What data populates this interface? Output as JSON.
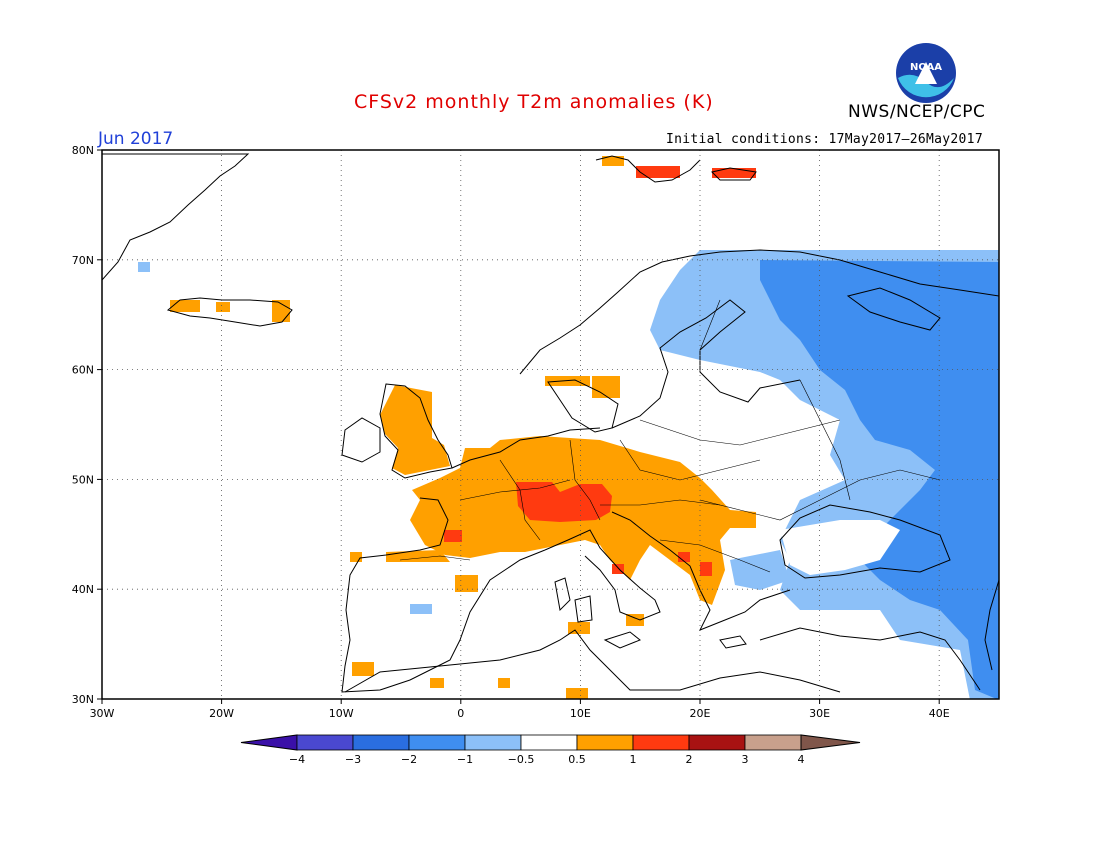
{
  "header": {
    "title": "CFSv2 monthly T2m anomalies (K)",
    "agency": "NWS/NCEP/CPC",
    "logo_text": "NOAA",
    "month": "Jun 2017",
    "initial_conditions": "Initial conditions: 17May2017–26May2017"
  },
  "map": {
    "lon_range": [
      -30,
      45
    ],
    "lat_range": [
      30,
      80
    ],
    "lat_ticks": [
      "80N",
      "70N",
      "60N",
      "50N",
      "40N",
      "30N"
    ],
    "lon_ticks": [
      "30W",
      "20W",
      "10W",
      "0",
      "10E",
      "20E",
      "30E",
      "40E"
    ],
    "grid": "dotted",
    "anomaly_regions": [
      {
        "region": "UK / Ireland",
        "category": "0.5 to 1"
      },
      {
        "region": "France / Benelux / Germany",
        "category": "0.5 to 1"
      },
      {
        "region": "Switzerland / S Germany / Austria",
        "category": "1 to 2"
      },
      {
        "region": "Balkans",
        "category": "0.5 to 1"
      },
      {
        "region": "Iberia",
        "category": "-0.5 to 0.5"
      },
      {
        "region": "Svalbard",
        "category": "0.5 to 2"
      },
      {
        "region": "Iceland coast",
        "category": "0.5 to 1"
      },
      {
        "region": "Finland / W Russia",
        "category": "-1 to -0.5"
      },
      {
        "region": "European Russia",
        "category": "-2 to -1"
      },
      {
        "region": "Ukraine / Black Sea",
        "category": "-1 to -0.5"
      },
      {
        "region": "Turkey",
        "category": "-1 to -0.5"
      }
    ]
  },
  "colorbar": {
    "labels": [
      "−4",
      "−3",
      "−2",
      "−1",
      "−0.5",
      "0.5",
      "1",
      "2",
      "3",
      "4"
    ],
    "colors": [
      "#3a10a8",
      "#4a48d0",
      "#2a6ee0",
      "#3f8ef0",
      "#8cc0f8",
      "#ffffff",
      "#ffa000",
      "#ff3a10",
      "#a81212",
      "#c8a08c",
      "#80564a"
    ]
  }
}
